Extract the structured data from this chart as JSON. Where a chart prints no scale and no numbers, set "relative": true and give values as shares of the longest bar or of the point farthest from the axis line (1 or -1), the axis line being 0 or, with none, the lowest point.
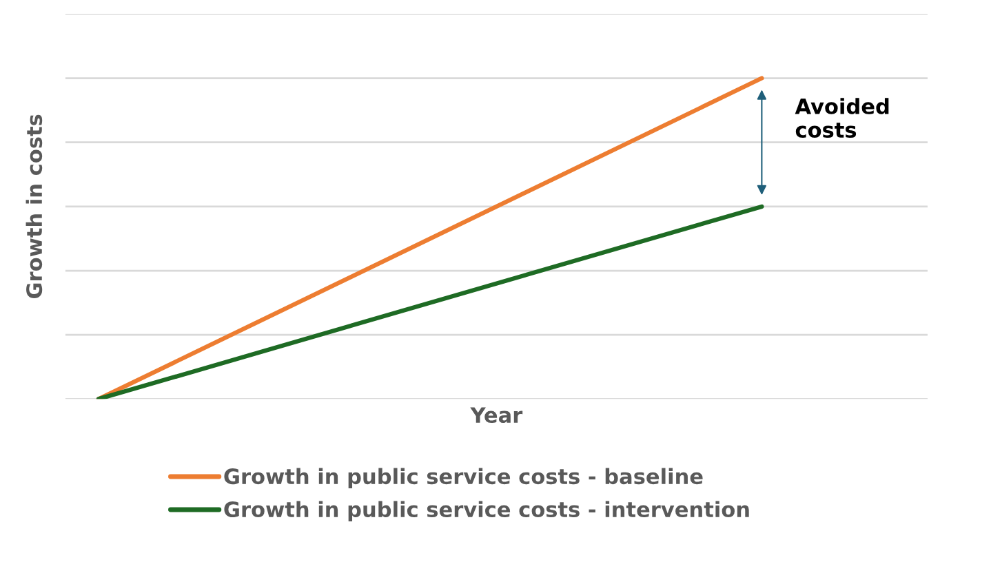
{
  "chart_data": {
    "type": "line",
    "relative": true,
    "xlabel": "Year",
    "ylabel": "Growth in costs",
    "categories": [
      null,
      null
    ],
    "series": [
      {
        "name": "Growth in public service costs - baseline",
        "color": "#ed7d31",
        "values": [
          0,
          1
        ]
      },
      {
        "name": "Growth in public service costs - intervention",
        "color": "#1e6b24",
        "values": [
          0,
          0.6
        ]
      }
    ],
    "annotations": [
      "Avoided costs"
    ],
    "grid": "y",
    "legend": "bottom",
    "marker": "none",
    "line_style": "solid",
    "tick_labels": false
  }
}
